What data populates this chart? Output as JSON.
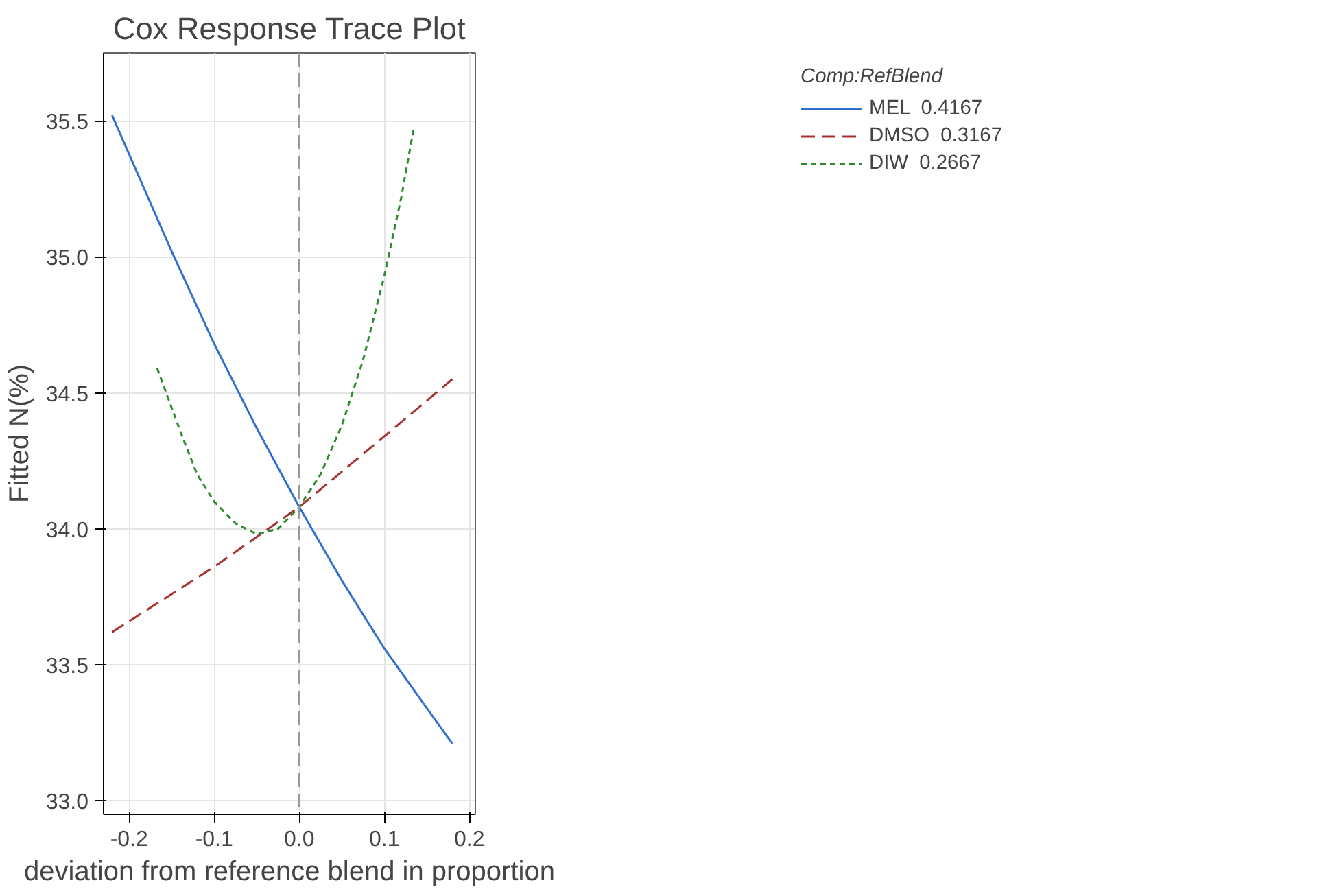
{
  "chart_data": {
    "type": "line",
    "title": "Cox Response Trace Plot",
    "xlabel": "deviation from reference blend in proportion",
    "ylabel": "Fitted N(%)",
    "legend_title": "Comp:RefBlend",
    "xlim": [
      -0.23,
      0.207
    ],
    "ylim": [
      32.95,
      35.75
    ],
    "xticks": [
      -0.2,
      -0.1,
      {
        "value": 0,
        "label": "0.0"
      },
      0.1,
      0.2
    ],
    "yticks": [
      {
        "value": 33,
        "label": "33.0"
      },
      33.5,
      {
        "value": 34,
        "label": "34.0"
      },
      34.5,
      {
        "value": 35,
        "label": "35.0"
      },
      35.5
    ],
    "grid": true,
    "legend": "top right",
    "marker": "none",
    "ref_lines": [
      {
        "axis": "x",
        "value": 0,
        "color": "#999999",
        "line_style": "dashed"
      }
    ],
    "series": [
      {
        "name": "MEL  0.4167",
        "color": "#2f6fce",
        "line_style": "solid",
        "x": [
          -0.22,
          -0.15,
          -0.1,
          -0.05,
          0,
          0.05,
          0.1,
          0.15,
          0.18
        ],
        "values": [
          35.52,
          35.02,
          34.68,
          34.37,
          34.08,
          33.81,
          33.56,
          33.34,
          33.21
        ]
      },
      {
        "name": "DMSO  0.3167",
        "color": "#a83232",
        "line_style": "dashed",
        "x": [
          -0.22,
          -0.1,
          0,
          0.1,
          0.18
        ],
        "values": [
          33.62,
          33.86,
          34.08,
          34.34,
          34.55
        ]
      },
      {
        "name": "DIW  0.2667",
        "color": "#2e8b2e",
        "line_style": "dotted",
        "x": [
          -0.167,
          -0.14,
          -0.12,
          -0.1,
          -0.075,
          -0.05,
          -0.025,
          0,
          0.025,
          0.05,
          0.075,
          0.1,
          0.12,
          0.135
        ],
        "values": [
          34.59,
          34.36,
          34.2,
          34.1,
          34.02,
          33.98,
          34.0,
          34.08,
          34.2,
          34.38,
          34.62,
          34.93,
          35.22,
          35.48
        ]
      }
    ]
  }
}
